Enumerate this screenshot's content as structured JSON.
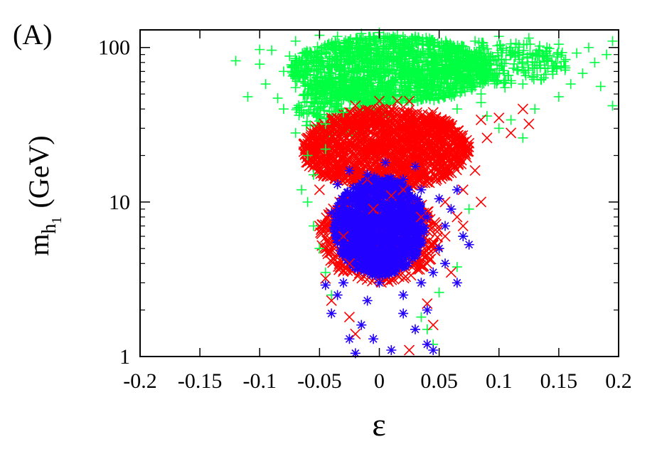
{
  "chart_data": {
    "type": "scatter",
    "panel_label": "(A)",
    "xlabel": "ε",
    "ylabel": {
      "base": "m",
      "sub": "h",
      "subsub": "1",
      "unit": "(GeV)"
    },
    "xlim": [
      -0.2,
      0.2
    ],
    "ylim": [
      1,
      130
    ],
    "yscale": "log",
    "grid": false,
    "legend": "none",
    "x_ticks": [
      "-0.2",
      "-0.15",
      "-0.1",
      "-0.05",
      "0",
      "0.05",
      "0.1",
      "0.15",
      "0.2"
    ],
    "y_ticks": [
      "1",
      "10",
      "100"
    ],
    "series": [
      {
        "color": "#00ff40",
        "marker": "plus",
        "description_points": "broad distribution",
        "points": [
          [
            -0.12,
            82
          ],
          [
            -0.11,
            48
          ],
          [
            -0.1,
            97
          ],
          [
            -0.1,
            78
          ],
          [
            -0.095,
            58
          ],
          [
            -0.09,
            96
          ],
          [
            -0.085,
            47
          ],
          [
            -0.08,
            70
          ],
          [
            -0.075,
            88
          ],
          [
            -0.07,
            55
          ],
          [
            -0.07,
            110
          ],
          [
            -0.065,
            38
          ],
          [
            -0.06,
            93
          ],
          [
            -0.06,
            66
          ],
          [
            -0.055,
            44
          ],
          [
            -0.05,
            120
          ],
          [
            -0.05,
            82
          ],
          [
            -0.05,
            52
          ],
          [
            -0.045,
            32
          ],
          [
            -0.04,
            105
          ],
          [
            -0.04,
            75
          ],
          [
            -0.04,
            45
          ],
          [
            -0.035,
            118
          ],
          [
            -0.03,
            92
          ],
          [
            -0.03,
            62
          ],
          [
            -0.03,
            38
          ],
          [
            -0.025,
            110
          ],
          [
            -0.02,
            85
          ],
          [
            -0.02,
            58
          ],
          [
            -0.015,
            123
          ],
          [
            -0.01,
            100
          ],
          [
            -0.01,
            72
          ],
          [
            -0.005,
            48
          ],
          [
            0,
            125
          ],
          [
            0,
            95
          ],
          [
            0,
            68
          ],
          [
            0.005,
            115
          ],
          [
            0.01,
            88
          ],
          [
            0.01,
            60
          ],
          [
            0.015,
            120
          ],
          [
            0.02,
            100
          ],
          [
            0.02,
            74
          ],
          [
            0.025,
            52
          ],
          [
            0.03,
            118
          ],
          [
            0.03,
            86
          ],
          [
            0.035,
            62
          ],
          [
            0.04,
            110
          ],
          [
            0.04,
            78
          ],
          [
            0.045,
            55
          ],
          [
            0.05,
            102
          ],
          [
            0.05,
            70
          ],
          [
            0.055,
            48
          ],
          [
            0.06,
            95
          ],
          [
            0.06,
            64
          ],
          [
            0.065,
            40
          ],
          [
            0.07,
            88
          ],
          [
            0.075,
            58
          ],
          [
            0.08,
            110
          ],
          [
            0.08,
            76
          ],
          [
            0.085,
            50
          ],
          [
            0.09,
            98
          ],
          [
            0.095,
            66
          ],
          [
            0.1,
            118
          ],
          [
            0.1,
            84
          ],
          [
            0.105,
            55
          ],
          [
            0.11,
            100
          ],
          [
            0.115,
            72
          ],
          [
            0.12,
            90
          ],
          [
            0.12,
            58
          ],
          [
            0.125,
            115
          ],
          [
            0.13,
            80
          ],
          [
            0.135,
            62
          ],
          [
            0.14,
            95
          ],
          [
            0.145,
            70
          ],
          [
            0.15,
            105
          ],
          [
            0.155,
            76
          ],
          [
            0.16,
            58
          ],
          [
            0.165,
            92
          ],
          [
            0.17,
            68
          ],
          [
            0.175,
            100
          ],
          [
            0.18,
            80
          ],
          [
            0.185,
            56
          ],
          [
            0.19,
            90
          ],
          [
            0.195,
            110
          ],
          [
            0.195,
            42
          ],
          [
            0.12,
            26
          ],
          [
            0.1,
            30
          ],
          [
            -0.07,
            28
          ],
          [
            -0.06,
            20
          ],
          [
            -0.055,
            15
          ],
          [
            -0.06,
            10
          ],
          [
            -0.055,
            7
          ],
          [
            -0.05,
            5
          ],
          [
            -0.045,
            3.5
          ],
          [
            -0.04,
            2.5
          ],
          [
            0.04,
            1.5
          ],
          [
            0.045,
            1.2
          ],
          [
            0.035,
            1.8
          ],
          [
            0.05,
            2.6
          ],
          [
            0.065,
            3.8
          ],
          [
            0.07,
            6
          ],
          [
            0.075,
            9
          ],
          [
            -0.065,
            12
          ],
          [
            -0.045,
            22
          ],
          [
            0.09,
            36
          ],
          [
            0.085,
            44
          ],
          [
            -0.08,
            40
          ],
          [
            0.11,
            34
          ],
          [
            0.13,
            40
          ],
          [
            0.15,
            48
          ]
        ]
      },
      {
        "color": "#ff0000",
        "marker": "cross",
        "points": [
          [
            -0.06,
            26
          ],
          [
            -0.055,
            18
          ],
          [
            -0.05,
            12
          ],
          [
            -0.05,
            7
          ],
          [
            -0.045,
            5
          ],
          [
            -0.045,
            3.2
          ],
          [
            -0.04,
            2.3
          ],
          [
            -0.04,
            35
          ],
          [
            -0.035,
            24
          ],
          [
            -0.035,
            15
          ],
          [
            -0.03,
            10
          ],
          [
            -0.03,
            6
          ],
          [
            -0.025,
            4
          ],
          [
            -0.025,
            1.8
          ],
          [
            -0.02,
            1.4
          ],
          [
            -0.02,
            42
          ],
          [
            -0.015,
            30
          ],
          [
            -0.01,
            20
          ],
          [
            -0.01,
            14
          ],
          [
            -0.005,
            9
          ],
          [
            0,
            45
          ],
          [
            0,
            33
          ],
          [
            0,
            22
          ],
          [
            0.005,
            16
          ],
          [
            0.01,
            11
          ],
          [
            0.01,
            40
          ],
          [
            0.015,
            28
          ],
          [
            0.02,
            18
          ],
          [
            0.02,
            12
          ],
          [
            0.025,
            1.1
          ],
          [
            0.025,
            45
          ],
          [
            0.03,
            32
          ],
          [
            0.03,
            22
          ],
          [
            0.035,
            14
          ],
          [
            0.035,
            8
          ],
          [
            0.04,
            4
          ],
          [
            0.04,
            2.2
          ],
          [
            0.045,
            1.6
          ],
          [
            0.045,
            38
          ],
          [
            0.05,
            26
          ],
          [
            0.05,
            16
          ],
          [
            0.055,
            10
          ],
          [
            0.055,
            6
          ],
          [
            0.06,
            3.5
          ],
          [
            0.06,
            30
          ],
          [
            0.065,
            20
          ],
          [
            0.07,
            12
          ],
          [
            0.07,
            7
          ],
          [
            0.075,
            24
          ],
          [
            0.08,
            16
          ],
          [
            0.085,
            10
          ],
          [
            0.085,
            34
          ],
          [
            0.09,
            26
          ],
          [
            0.1,
            35
          ],
          [
            0.11,
            28
          ],
          [
            0.12,
            40
          ],
          [
            0.125,
            32
          ],
          [
            -0.025,
            38
          ],
          [
            0.015,
            45
          ],
          [
            0.065,
            8
          ]
        ]
      },
      {
        "color": "#2200ff",
        "marker": "star",
        "points": [
          [
            -0.03,
            3
          ],
          [
            -0.035,
            2.5
          ],
          [
            -0.04,
            1.9
          ],
          [
            -0.025,
            1.3
          ],
          [
            -0.02,
            1.05
          ],
          [
            -0.015,
            1.6
          ],
          [
            -0.01,
            2.3
          ],
          [
            -0.005,
            4
          ],
          [
            0,
            6
          ],
          [
            0.005,
            8
          ],
          [
            0.01,
            10
          ],
          [
            0.015,
            13
          ],
          [
            0.02,
            9
          ],
          [
            0.025,
            6.5
          ],
          [
            0.03,
            4.5
          ],
          [
            0.035,
            3
          ],
          [
            0.04,
            2
          ],
          [
            0.04,
            1.2
          ],
          [
            0.045,
            3.5
          ],
          [
            0.05,
            5
          ],
          [
            0.055,
            7
          ],
          [
            0.06,
            9
          ],
          [
            0.065,
            12
          ],
          [
            0.07,
            6
          ],
          [
            0.075,
            5.3
          ],
          [
            0.065,
            3
          ],
          [
            0.045,
            1.1
          ],
          [
            0.01,
            1.1
          ],
          [
            -0.005,
            1.3
          ],
          [
            -0.02,
            4.5
          ],
          [
            -0.025,
            7
          ],
          [
            -0.03,
            10
          ],
          [
            -0.035,
            13
          ],
          [
            -0.025,
            16
          ],
          [
            -0.01,
            15
          ],
          [
            0.005,
            18
          ],
          [
            0.02,
            14
          ],
          [
            0.03,
            17
          ],
          [
            0.035,
            12
          ],
          [
            0.02,
            2.5
          ],
          [
            0,
            3
          ],
          [
            -0.015,
            5.5
          ],
          [
            0.01,
            5
          ],
          [
            0.025,
            11
          ],
          [
            -0.005,
            12
          ],
          [
            0.015,
            7
          ],
          [
            -0.03,
            5.5
          ],
          [
            0.04,
            8
          ],
          [
            0.05,
            10.5
          ],
          [
            -0.04,
            8.5
          ],
          [
            0.03,
            1.5
          ],
          [
            0.02,
            1.9
          ],
          [
            -0.045,
            2.9
          ],
          [
            0.055,
            4
          ]
        ]
      }
    ]
  }
}
